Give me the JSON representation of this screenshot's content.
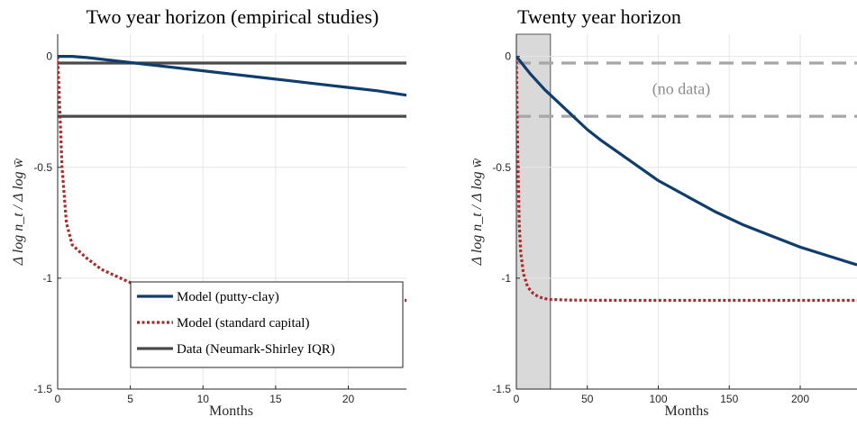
{
  "chart_data": [
    {
      "type": "line",
      "title": "Two year horizon (empirical studies)",
      "xlabel": "Months",
      "ylabel": "Δ log n_t / Δ log w̄",
      "xlim": [
        0,
        24
      ],
      "ylim": [
        -1.5,
        0.1
      ],
      "xticks": [
        0,
        5,
        10,
        15,
        20
      ],
      "xtick_labels": [
        "0",
        "5",
        "10",
        "15",
        "20"
      ],
      "yticks": [
        0,
        -0.5,
        -1,
        -1.5
      ],
      "ytick_labels": [
        "0",
        "-0.5",
        "-1",
        "-1.5"
      ],
      "grid": true,
      "legend_position": "bottom-right",
      "series": [
        {
          "name": "Model (putty-clay)",
          "color": "#0f3d6e",
          "style": "solid",
          "x": [
            0,
            1,
            2,
            4,
            6,
            8,
            10,
            12,
            14,
            16,
            18,
            20,
            22,
            24
          ],
          "y": [
            0,
            0,
            -0.005,
            -0.02,
            -0.035,
            -0.05,
            -0.065,
            -0.08,
            -0.095,
            -0.11,
            -0.125,
            -0.14,
            -0.155,
            -0.175
          ]
        },
        {
          "name": "Model (standard capital)",
          "color": "#ad2a2a",
          "style": "dotted",
          "x": [
            0,
            0.3,
            0.6,
            1,
            2,
            3,
            4,
            5,
            6,
            8,
            10,
            12,
            15,
            18,
            21,
            24
          ],
          "y": [
            0,
            -0.5,
            -0.75,
            -0.85,
            -0.91,
            -0.96,
            -0.99,
            -1.02,
            -1.04,
            -1.065,
            -1.08,
            -1.088,
            -1.094,
            -1.097,
            -1.099,
            -1.1
          ]
        },
        {
          "name": "Data (Neumark-Shirley IQR)",
          "color": "#4a4a4a",
          "style": "solid",
          "hlines": [
            -0.03,
            -0.27
          ]
        }
      ]
    },
    {
      "type": "line",
      "title": "Twenty year horizon",
      "xlabel": "Months",
      "ylabel": "Δ log n_t / Δ log w̄",
      "xlim": [
        0,
        240
      ],
      "ylim": [
        -1.5,
        0.1
      ],
      "xticks": [
        0,
        50,
        100,
        150,
        200
      ],
      "xtick_labels": [
        "0",
        "50",
        "100",
        "150",
        "200"
      ],
      "yticks": [
        0,
        -0.5,
        -1,
        -1.5
      ],
      "ytick_labels": [
        "0",
        "-0.5",
        "-1",
        "-1.5"
      ],
      "grid": true,
      "shaded_region": [
        0,
        24
      ],
      "annotation": "(no data)",
      "series": [
        {
          "name": "Model (putty-clay)",
          "color": "#0f3d6e",
          "style": "solid",
          "x": [
            0,
            10,
            20,
            30,
            40,
            50,
            60,
            80,
            100,
            120,
            140,
            160,
            180,
            200,
            220,
            240
          ],
          "y": [
            0,
            -0.08,
            -0.15,
            -0.21,
            -0.27,
            -0.33,
            -0.38,
            -0.47,
            -0.56,
            -0.63,
            -0.7,
            -0.76,
            -0.81,
            -0.86,
            -0.9,
            -0.94
          ]
        },
        {
          "name": "Model (standard capital)",
          "color": "#ad2a2a",
          "style": "dotted",
          "x": [
            0,
            1,
            2,
            3,
            5,
            8,
            12,
            16,
            20,
            24,
            40,
            80,
            120,
            160,
            200,
            240
          ],
          "y": [
            0,
            -0.45,
            -0.75,
            -0.88,
            -0.98,
            -1.04,
            -1.07,
            -1.085,
            -1.092,
            -1.096,
            -1.099,
            -1.1,
            -1.1,
            -1.1,
            -1.1,
            -1.1
          ]
        },
        {
          "name": "Data (Neumark-Shirley IQR)",
          "color": "#a6a6a6",
          "style": "dashed",
          "hlines": [
            -0.03,
            -0.27
          ]
        }
      ]
    }
  ]
}
